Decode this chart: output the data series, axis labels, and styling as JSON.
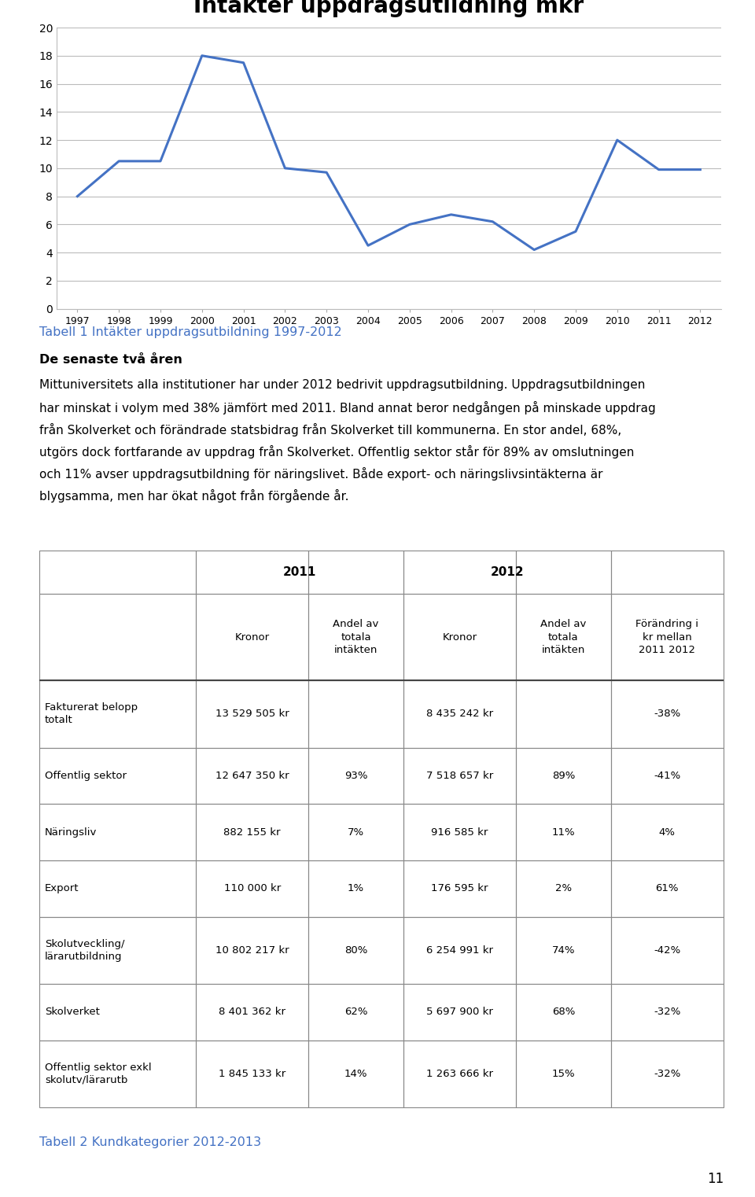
{
  "chart_title": "Intäkter uppdragsutildning mkr",
  "years": [
    1997,
    1998,
    1999,
    2000,
    2001,
    2002,
    2003,
    2004,
    2005,
    2006,
    2007,
    2008,
    2009,
    2010,
    2011,
    2012
  ],
  "values": [
    8,
    10.5,
    10.5,
    18,
    17.5,
    10,
    9.7,
    4.5,
    6,
    6.7,
    6.2,
    4.2,
    5.5,
    12,
    9.9,
    9.9
  ],
  "line_color": "#4472C4",
  "y_min": 0,
  "y_max": 20,
  "y_ticks": [
    0,
    2,
    4,
    6,
    8,
    10,
    12,
    14,
    16,
    18,
    20
  ],
  "table1_title": "Tabell 1 Intäkter uppdragsutbildning 1997-2012",
  "table_title_color": "#4472C4",
  "section_title": "De senaste två åren",
  "body_text_lines": [
    "Mittuniversitets alla institutioner har under 2012 bedrivit uppdragsutbildning. Uppdragsutbildningen",
    "har minskat i volym med 38% jämfört med 2011. Bland annat beror nedgången på minskade uppdrag",
    "från Skolverket och förändrade statsbidrag från Skolverket till kommunerna. En stor andel, 68%,",
    "utgörs dock fortfarande av uppdrag från Skolverket. Offentlig sektor står för 89% av omslutningen",
    "och 11% avser uppdragsutbildning för näringslivet. Både export- och näringslivsintäkterna är",
    "blygsamma, men har ökat något från förgående år."
  ],
  "col_widths_norm": [
    0.215,
    0.155,
    0.13,
    0.155,
    0.13,
    0.155
  ],
  "header_row": [
    "",
    "2011",
    "",
    "2012",
    "",
    ""
  ],
  "subheader_row": [
    "",
    "Kronor",
    "Andel av\ntotala\nintäkten",
    "Kronor",
    "Andel av\ntotala\nintäkten",
    "Förändring i\nkr mellan\n2011 2012"
  ],
  "data_rows": [
    [
      "Fakturerat belopp\ntotalt",
      "13 529 505 kr",
      "",
      "8 435 242 kr",
      "",
      "-38%"
    ],
    [
      "Offentlig sektor",
      "12 647 350 kr",
      "93%",
      "7 518 657 kr",
      "89%",
      "-41%"
    ],
    [
      "Näringsliv",
      "882 155 kr",
      "7%",
      "916 585 kr",
      "11%",
      "4%"
    ],
    [
      "Export",
      "110 000 kr",
      "1%",
      "176 595 kr",
      "2%",
      "61%"
    ],
    [
      "Skolutveckling/\nlärarutbildning",
      "10 802 217 kr",
      "80%",
      "6 254 991 kr",
      "74%",
      "-42%"
    ],
    [
      "Skolverket",
      "8 401 362 kr",
      "62%",
      "5 697 900 kr",
      "68%",
      "-32%"
    ],
    [
      "Offentlig sektor exkl\nskolutv/lärarutb",
      "1 845 133 kr",
      "14%",
      "1 263 666 kr",
      "15%",
      "-32%"
    ]
  ],
  "table2_title": "Tabell 2 Kundkategorier 2012-2013",
  "page_number": "11",
  "bg_color": "#ffffff",
  "border_color": "#888888",
  "text_color": "#000000"
}
